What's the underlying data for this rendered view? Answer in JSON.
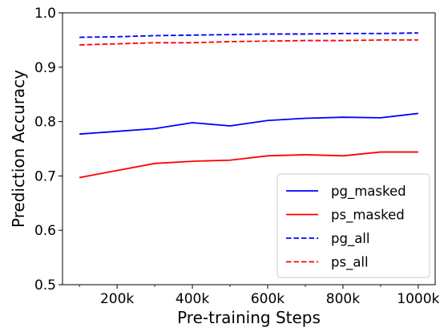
{
  "chart_data": {
    "type": "line",
    "title": "",
    "xlabel": "Pre-training Steps",
    "ylabel": "Prediction Accuracy",
    "x": [
      100,
      200,
      300,
      400,
      500,
      600,
      700,
      800,
      900,
      1000
    ],
    "x_unit": "k steps",
    "xlim": [
      55,
      1045
    ],
    "ylim": [
      0.5,
      1.0
    ],
    "xticks": [
      200,
      400,
      600,
      800,
      1000
    ],
    "xtick_labels": [
      "200k",
      "400k",
      "600k",
      "800k",
      "1000k"
    ],
    "minor_xticks": [
      100,
      300,
      500,
      700,
      900
    ],
    "yticks": [
      0.5,
      0.6,
      0.7,
      0.8,
      0.9,
      1.0
    ],
    "ytick_labels": [
      "0.5",
      "0.6",
      "0.7",
      "0.8",
      "0.9",
      "1.0"
    ],
    "grid": false,
    "legend_position": "lower-right",
    "series": [
      {
        "name": "pg_masked",
        "color": "#0000ff",
        "style": "solid",
        "values": [
          0.777,
          0.782,
          0.787,
          0.798,
          0.792,
          0.802,
          0.806,
          0.808,
          0.807,
          0.815
        ]
      },
      {
        "name": "ps_masked",
        "color": "#ff0000",
        "style": "solid",
        "values": [
          0.697,
          0.71,
          0.723,
          0.727,
          0.729,
          0.737,
          0.739,
          0.737,
          0.744,
          0.744
        ]
      },
      {
        "name": "pg_all",
        "color": "#0000ff",
        "style": "dashed",
        "values": [
          0.955,
          0.956,
          0.958,
          0.959,
          0.96,
          0.961,
          0.961,
          0.962,
          0.962,
          0.963
        ]
      },
      {
        "name": "ps_all",
        "color": "#ff0000",
        "style": "dashed",
        "values": [
          0.941,
          0.943,
          0.945,
          0.945,
          0.947,
          0.948,
          0.949,
          0.949,
          0.95,
          0.95
        ]
      }
    ]
  }
}
